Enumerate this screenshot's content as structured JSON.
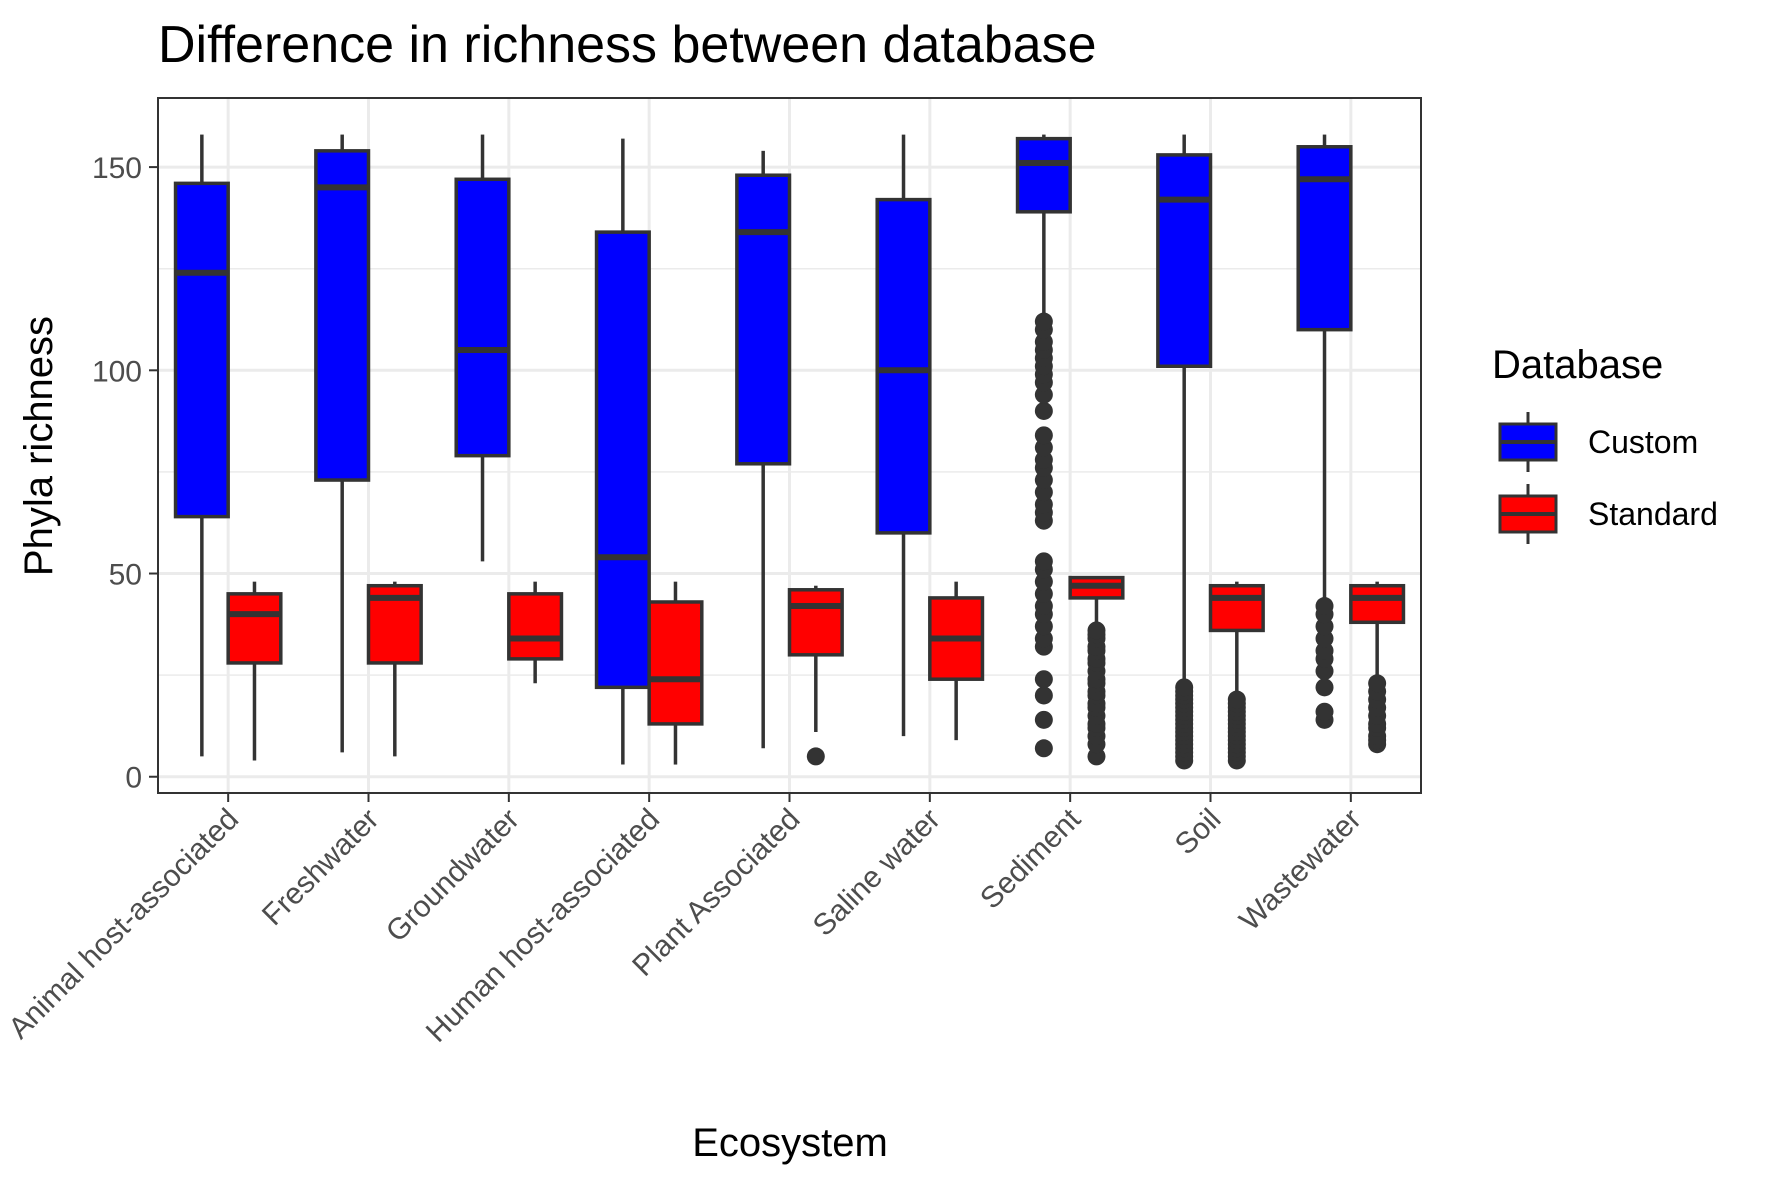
{
  "chart_data": {
    "type": "boxplot",
    "title": "Difference in richness between database",
    "xlabel": "Ecosystem",
    "ylabel": "Phyla richness",
    "ylim": [
      -4,
      167
    ],
    "y_ticks": [
      0,
      50,
      100,
      150
    ],
    "grid": true,
    "legend": {
      "title": "Database",
      "placement": "right"
    },
    "categories": [
      "Animal host-associated",
      "Freshwater",
      "Groundwater",
      "Human host-associated",
      "Plant Associated",
      "Saline water",
      "Sediment",
      "Soil",
      "Wastewater"
    ],
    "series": [
      {
        "name": "Custom",
        "color": "#0000ff",
        "boxes": [
          {
            "whisker_low": 5,
            "q1": 64,
            "median": 124,
            "q3": 146,
            "whisker_high": 158,
            "outliers": []
          },
          {
            "whisker_low": 6,
            "q1": 73,
            "median": 145,
            "q3": 154,
            "whisker_high": 158,
            "outliers": []
          },
          {
            "whisker_low": 53,
            "q1": 79,
            "median": 105,
            "q3": 147,
            "whisker_high": 158,
            "outliers": []
          },
          {
            "whisker_low": 3,
            "q1": 22,
            "median": 54,
            "q3": 134,
            "whisker_high": 157,
            "outliers": []
          },
          {
            "whisker_low": 7,
            "q1": 77,
            "median": 134,
            "q3": 148,
            "whisker_high": 154,
            "outliers": []
          },
          {
            "whisker_low": 10,
            "q1": 60,
            "median": 100,
            "q3": 142,
            "whisker_high": 158,
            "outliers": []
          },
          {
            "whisker_low": 113,
            "q1": 139,
            "median": 151,
            "q3": 157,
            "whisker_high": 158,
            "outliers": [
              7,
              14,
              20,
              24,
              32,
              34,
              37,
              40,
              42,
              45,
              48,
              51,
              53,
              63,
              65,
              67,
              70,
              73,
              76,
              78,
              81,
              84,
              90,
              94,
              97,
              99,
              101,
              103,
              105,
              107,
              110,
              112
            ]
          },
          {
            "whisker_low": 23,
            "q1": 101,
            "median": 142,
            "q3": 153,
            "whisker_high": 158,
            "outliers": [
              4,
              5,
              6,
              7,
              8,
              9,
              10,
              11,
              12,
              13,
              14,
              15,
              16,
              17,
              18,
              19,
              20,
              21,
              22
            ]
          },
          {
            "whisker_low": 44,
            "q1": 110,
            "median": 147,
            "q3": 155,
            "whisker_high": 158,
            "outliers": [
              14,
              16,
              22,
              26,
              29,
              31,
              34,
              37,
              40,
              42
            ]
          }
        ]
      },
      {
        "name": "Standard",
        "color": "#ff0000",
        "boxes": [
          {
            "whisker_low": 4,
            "q1": 28,
            "median": 40,
            "q3": 45,
            "whisker_high": 48,
            "outliers": []
          },
          {
            "whisker_low": 5,
            "q1": 28,
            "median": 44,
            "q3": 47,
            "whisker_high": 48,
            "outliers": []
          },
          {
            "whisker_low": 23,
            "q1": 29,
            "median": 34,
            "q3": 45,
            "whisker_high": 48,
            "outliers": []
          },
          {
            "whisker_low": 3,
            "q1": 13,
            "median": 24,
            "q3": 43,
            "whisker_high": 48,
            "outliers": []
          },
          {
            "whisker_low": 11,
            "q1": 30,
            "median": 42,
            "q3": 46,
            "whisker_high": 47,
            "outliers": [
              5
            ]
          },
          {
            "whisker_low": 9,
            "q1": 24,
            "median": 34,
            "q3": 44,
            "whisker_high": 48,
            "outliers": []
          },
          {
            "whisker_low": 37,
            "q1": 44,
            "median": 47,
            "q3": 49,
            "whisker_high": 49,
            "outliers": [
              5,
              8,
              10,
              12,
              13,
              15,
              17,
              18,
              20,
              21,
              23,
              24,
              26,
              28,
              29,
              31,
              32,
              34,
              35,
              36
            ]
          },
          {
            "whisker_low": 20,
            "q1": 36,
            "median": 44,
            "q3": 47,
            "whisker_high": 48,
            "outliers": [
              4,
              5,
              6,
              7,
              8,
              9,
              10,
              11,
              12,
              13,
              14,
              15,
              16,
              17,
              18,
              19
            ]
          },
          {
            "whisker_low": 25,
            "q1": 38,
            "median": 44,
            "q3": 47,
            "whisker_high": 48,
            "outliers": [
              8,
              9,
              10,
              12,
              13,
              15,
              17,
              19,
              21,
              23
            ]
          }
        ]
      }
    ]
  }
}
